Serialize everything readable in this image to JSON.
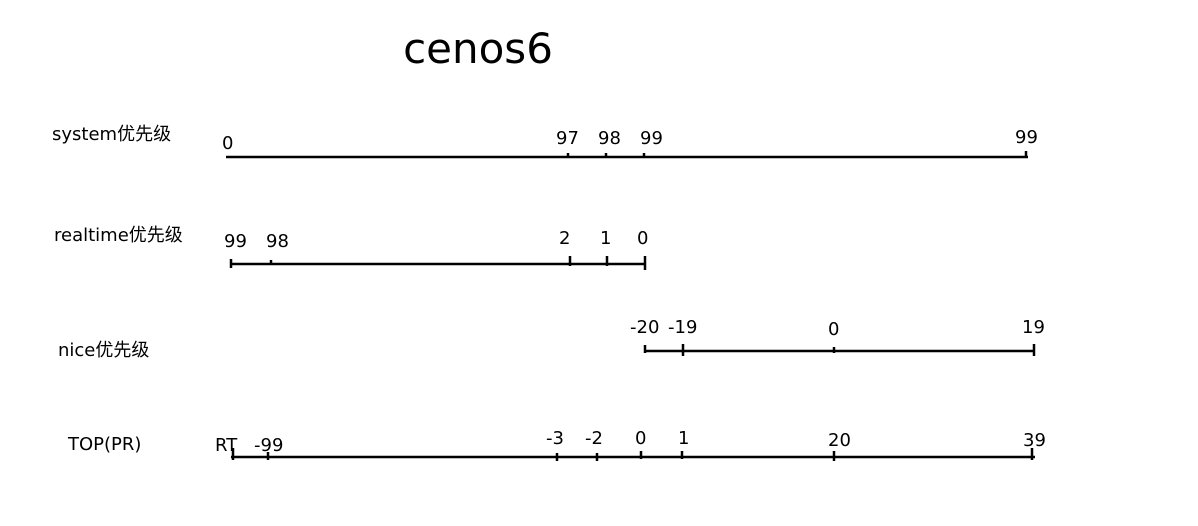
{
  "title": "cenos6",
  "rows": [
    {
      "label": "system优先级",
      "ticks": [
        "0",
        "97",
        "98",
        "99",
        "99"
      ]
    },
    {
      "label": "realtime优先级",
      "ticks": [
        "99",
        "98",
        "2",
        "1",
        "0"
      ]
    },
    {
      "label": "nice优先级",
      "ticks": [
        "-20",
        "-19",
        "0",
        "19"
      ]
    },
    {
      "label": "TOP(PR)",
      "ticks": [
        "RT",
        "-99",
        "-3",
        "-2",
        "0",
        "1",
        "20",
        "39"
      ]
    }
  ]
}
